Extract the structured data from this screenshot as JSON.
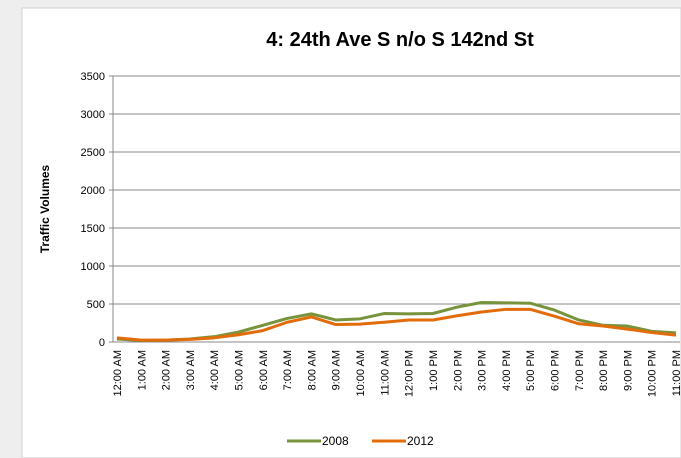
{
  "chart_data": {
    "type": "line",
    "title": "4: 24th Ave S n/o S 142nd St",
    "y_label": "Traffic Volumes",
    "categories": [
      "12:00 AM",
      "1:00 AM",
      "2:00 AM",
      "3:00 AM",
      "4:00 AM",
      "5:00 AM",
      "6:00 AM",
      "7:00 AM",
      "8:00 AM",
      "9:00 AM",
      "10:00 AM",
      "11:00 AM",
      "12:00 PM",
      "1:00 PM",
      "2:00 PM",
      "3:00 PM",
      "4:00 PM",
      "5:00 PM",
      "6:00 PM",
      "7:00 PM",
      "8:00 PM",
      "9:00 PM",
      "10:00 PM",
      "11:00 PM"
    ],
    "series": [
      {
        "name": "2008",
        "color": "#77933c",
        "values": [
          40,
          20,
          25,
          40,
          70,
          130,
          220,
          310,
          370,
          290,
          305,
          375,
          370,
          375,
          460,
          520,
          515,
          510,
          420,
          290,
          220,
          210,
          140,
          120
        ]
      },
      {
        "name": "2012",
        "color": "#e36c0a",
        "values": [
          55,
          25,
          25,
          35,
          55,
          95,
          150,
          260,
          330,
          230,
          235,
          260,
          290,
          290,
          345,
          395,
          430,
          430,
          340,
          240,
          210,
          170,
          125,
          90
        ]
      }
    ],
    "ylim": [
      0,
      3500
    ],
    "yticks": [
      0,
      500,
      1000,
      1500,
      2000,
      2500,
      3000,
      3500
    ],
    "grid": true,
    "legend": "bottom"
  }
}
